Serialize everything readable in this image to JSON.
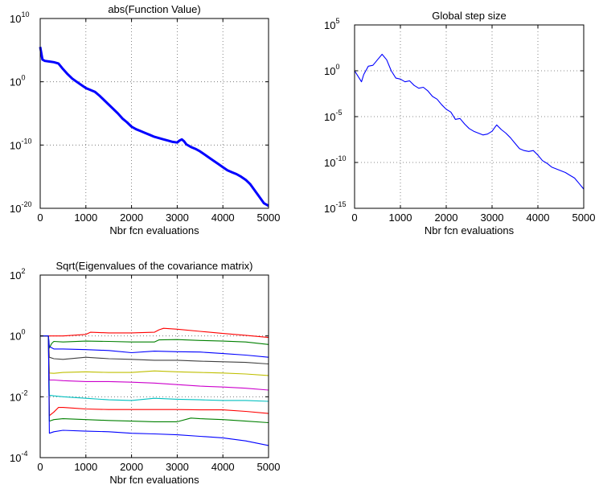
{
  "chart_data": [
    {
      "type": "line",
      "title": "abs(Function Value)",
      "xlabel": "Nbr fcn evaluations",
      "ylabel": "",
      "yscale": "log",
      "xlim": [
        0,
        5000
      ],
      "ylim_exp": [
        -20,
        10
      ],
      "grid": true,
      "x_ticks": [
        "0",
        "1000",
        "2000",
        "3000",
        "4000",
        "5000"
      ],
      "y_ticks": [
        {
          "base": "10",
          "exp": "-20"
        },
        {
          "base": "10",
          "exp": "-10"
        },
        {
          "base": "10",
          "exp": "0"
        },
        {
          "base": "10",
          "exp": "10"
        }
      ],
      "series": [
        {
          "color": "#0000ff",
          "x": [
            0,
            50,
            100,
            200,
            300,
            400,
            500,
            600,
            700,
            800,
            900,
            1000,
            1100,
            1200,
            1300,
            1400,
            1500,
            1600,
            1700,
            1800,
            1900,
            2000,
            2100,
            2200,
            2300,
            2400,
            2500,
            2600,
            2700,
            2800,
            2900,
            3000,
            3050,
            3100,
            3150,
            3200,
            3300,
            3400,
            3500,
            3600,
            3700,
            3800,
            3900,
            4000,
            4100,
            4200,
            4300,
            4400,
            4500,
            4600,
            4700,
            4800,
            4900,
            5000
          ],
          "exp": [
            5.5,
            3.5,
            3.3,
            3.2,
            3.1,
            2.9,
            2.0,
            1.2,
            0.5,
            0.0,
            -0.5,
            -1.0,
            -1.3,
            -1.6,
            -2.2,
            -2.9,
            -3.6,
            -4.3,
            -5.0,
            -5.8,
            -6.4,
            -7.1,
            -7.5,
            -7.8,
            -8.1,
            -8.4,
            -8.7,
            -8.9,
            -9.1,
            -9.3,
            -9.5,
            -9.6,
            -9.3,
            -9.1,
            -9.4,
            -9.9,
            -10.3,
            -10.6,
            -11.0,
            -11.5,
            -12.0,
            -12.5,
            -13.0,
            -13.5,
            -14.0,
            -14.3,
            -14.6,
            -15.0,
            -15.5,
            -16.2,
            -17.2,
            -18.2,
            -19.2,
            -19.6
          ]
        }
      ]
    },
    {
      "type": "line",
      "title": "Global step size",
      "xlabel": "Nbr fcn evaluations",
      "ylabel": "",
      "yscale": "log",
      "xlim": [
        0,
        5000
      ],
      "ylim_exp": [
        -15,
        5
      ],
      "grid": true,
      "x_ticks": [
        "0",
        "1000",
        "2000",
        "3000",
        "4000",
        "5000"
      ],
      "y_ticks": [
        {
          "base": "10",
          "exp": "-15"
        },
        {
          "base": "10",
          "exp": "-10"
        },
        {
          "base": "10",
          "exp": "-5"
        },
        {
          "base": "10",
          "exp": "0"
        },
        {
          "base": "10",
          "exp": "5"
        }
      ],
      "series": [
        {
          "color": "#0000ff",
          "x": [
            0,
            100,
            150,
            200,
            300,
            400,
            500,
            600,
            700,
            800,
            900,
            1000,
            1100,
            1200,
            1300,
            1400,
            1500,
            1600,
            1700,
            1800,
            1900,
            2000,
            2100,
            2200,
            2300,
            2400,
            2500,
            2600,
            2700,
            2800,
            2900,
            3000,
            3100,
            3200,
            3300,
            3400,
            3500,
            3600,
            3700,
            3800,
            3900,
            4000,
            4100,
            4200,
            4300,
            4400,
            4500,
            4600,
            4700,
            4800,
            4900,
            5000
          ],
          "exp": [
            0.0,
            -0.8,
            -1.2,
            -0.4,
            0.5,
            0.6,
            1.2,
            1.8,
            1.2,
            0.0,
            -0.8,
            -0.9,
            -1.2,
            -1.1,
            -1.6,
            -1.9,
            -1.8,
            -2.2,
            -2.8,
            -3.1,
            -3.7,
            -4.2,
            -4.5,
            -5.3,
            -5.2,
            -5.8,
            -6.3,
            -6.6,
            -6.8,
            -7.0,
            -6.9,
            -6.6,
            -5.9,
            -6.4,
            -6.8,
            -7.3,
            -7.9,
            -8.5,
            -8.7,
            -8.8,
            -8.7,
            -9.2,
            -9.8,
            -10.1,
            -10.5,
            -10.7,
            -10.9,
            -11.1,
            -11.4,
            -11.7,
            -12.3,
            -12.9
          ]
        }
      ]
    },
    {
      "type": "line",
      "title": "Sqrt(Eigenvalues of the covariance matrix)",
      "xlabel": "Nbr fcn evaluations",
      "ylabel": "",
      "yscale": "log",
      "xlim": [
        0,
        5000
      ],
      "ylim_exp": [
        -4,
        2
      ],
      "grid": true,
      "x_ticks": [
        "0",
        "1000",
        "2000",
        "3000",
        "4000",
        "5000"
      ],
      "y_ticks": [
        {
          "base": "10",
          "exp": "-4"
        },
        {
          "base": "10",
          "exp": "-2"
        },
        {
          "base": "10",
          "exp": "0"
        },
        {
          "base": "10",
          "exp": "2"
        }
      ],
      "series": [
        {
          "color": "#ff0000",
          "x": [
            0,
            200,
            500,
            1000,
            1100,
            1500,
            2000,
            2500,
            2600,
            2700,
            3000,
            3500,
            4000,
            4500,
            5000
          ],
          "exp": [
            0.0,
            0.0,
            0.0,
            0.05,
            0.12,
            0.1,
            0.1,
            0.12,
            0.2,
            0.25,
            0.22,
            0.15,
            0.08,
            0.02,
            -0.05
          ]
        },
        {
          "color": "#008000",
          "x": [
            0,
            180,
            200,
            250,
            300,
            500,
            1000,
            1500,
            2000,
            2500,
            2600,
            3000,
            3500,
            4000,
            4500,
            5000
          ],
          "exp": [
            0.0,
            0.0,
            -0.4,
            -0.25,
            -0.18,
            -0.2,
            -0.17,
            -0.18,
            -0.2,
            -0.2,
            -0.13,
            -0.12,
            -0.15,
            -0.17,
            -0.2,
            -0.28
          ]
        },
        {
          "color": "#0000ff",
          "x": [
            0,
            180,
            200,
            300,
            500,
            1000,
            1500,
            2000,
            2500,
            3000,
            3500,
            4000,
            4500,
            5000
          ],
          "exp": [
            0.0,
            0.0,
            -0.35,
            -0.43,
            -0.43,
            -0.45,
            -0.48,
            -0.55,
            -0.5,
            -0.52,
            -0.53,
            -0.58,
            -0.63,
            -0.7
          ]
        },
        {
          "color": "#404040",
          "x": [
            0,
            180,
            200,
            300,
            500,
            1000,
            1500,
            2000,
            2500,
            3000,
            3500,
            4000,
            4500,
            5000
          ],
          "exp": [
            0.0,
            0.0,
            -0.7,
            -0.75,
            -0.77,
            -0.7,
            -0.75,
            -0.77,
            -0.8,
            -0.8,
            -0.83,
            -0.85,
            -0.87,
            -0.92
          ]
        },
        {
          "color": "#bfbf00",
          "x": [
            0,
            180,
            200,
            300,
            500,
            1000,
            1500,
            2000,
            2500,
            3000,
            3500,
            4000,
            4500,
            5000
          ],
          "exp": [
            0.0,
            0.0,
            -1.22,
            -1.23,
            -1.2,
            -1.18,
            -1.2,
            -1.2,
            -1.15,
            -1.18,
            -1.2,
            -1.22,
            -1.25,
            -1.3
          ]
        },
        {
          "color": "#cc00cc",
          "x": [
            0,
            180,
            200,
            300,
            500,
            1000,
            1500,
            2000,
            2500,
            3000,
            3500,
            4000,
            4500,
            5000
          ],
          "exp": [
            0.0,
            0.0,
            -1.45,
            -1.45,
            -1.47,
            -1.5,
            -1.5,
            -1.52,
            -1.55,
            -1.6,
            -1.65,
            -1.68,
            -1.72,
            -1.78
          ]
        },
        {
          "color": "#00bfbf",
          "x": [
            0,
            180,
            200,
            300,
            500,
            1000,
            1500,
            2000,
            2500,
            3000,
            3500,
            4000,
            4500,
            5000
          ],
          "exp": [
            0.0,
            0.0,
            -1.95,
            -1.97,
            -2.0,
            -2.05,
            -2.1,
            -2.12,
            -2.05,
            -2.08,
            -2.1,
            -2.12,
            -2.12,
            -2.15
          ]
        },
        {
          "color": "#ff0000",
          "x": [
            0,
            180,
            200,
            300,
            400,
            500,
            1000,
            1500,
            2000,
            2500,
            3000,
            3500,
            4000,
            4500,
            5000
          ],
          "exp": [
            0.0,
            0.0,
            -2.62,
            -2.5,
            -2.35,
            -2.35,
            -2.4,
            -2.42,
            -2.42,
            -2.42,
            -2.42,
            -2.43,
            -2.43,
            -2.48,
            -2.55
          ]
        },
        {
          "color": "#008000",
          "x": [
            0,
            180,
            200,
            300,
            500,
            1000,
            1500,
            2000,
            2500,
            3000,
            3300,
            3500,
            4000,
            4500,
            5000
          ],
          "exp": [
            0.0,
            0.0,
            -2.8,
            -2.75,
            -2.72,
            -2.75,
            -2.78,
            -2.8,
            -2.82,
            -2.82,
            -2.7,
            -2.72,
            -2.75,
            -2.8,
            -2.85
          ]
        },
        {
          "color": "#0000ff",
          "x": [
            0,
            180,
            200,
            300,
            500,
            1000,
            1500,
            2000,
            2500,
            3000,
            3500,
            4000,
            4500,
            5000
          ],
          "exp": [
            0.0,
            0.0,
            -3.2,
            -3.15,
            -3.1,
            -3.13,
            -3.15,
            -3.2,
            -3.22,
            -3.25,
            -3.3,
            -3.35,
            -3.45,
            -3.6
          ]
        }
      ]
    }
  ]
}
